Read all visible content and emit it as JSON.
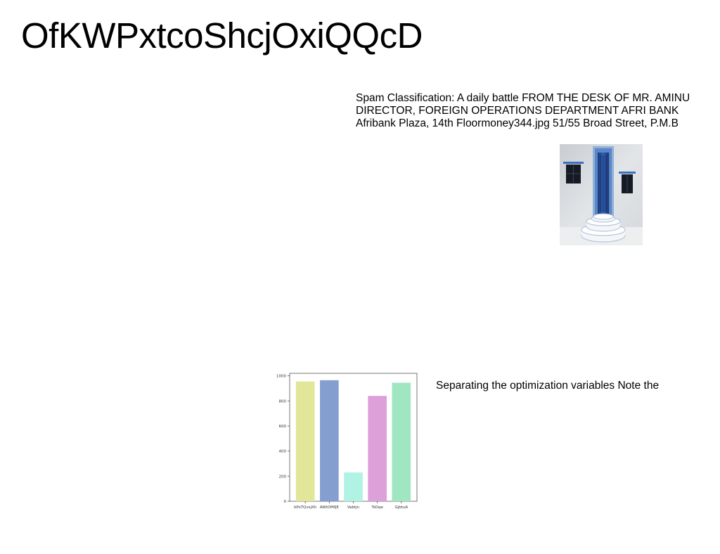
{
  "title": "OfKWPxtcoShcjOxiQQcD",
  "paragraph_top": "Spam Classification: A daily battle FROM THE DESK OF MR. AMINU DIRECTOR, FOREIGN OPERATIONS DEPARTMENT AFRI BANK Afribank Plaza, 14th Floormoney344.jpg 51/55 Broad Street, P.M.B",
  "paragraph_bottom": "Separating the optimization variables Note the",
  "photo": {
    "subject": "white wall with blue door, two windows and round steps"
  },
  "chart_data": {
    "type": "bar",
    "categories": [
      "bPsTQvsjXh",
      "AWtOfMjE",
      "Vabtjn",
      "TsDqe",
      "GjbtuA"
    ],
    "values": [
      955,
      965,
      230,
      840,
      945
    ],
    "colors": [
      "#e1e699",
      "#849fcf",
      "#b0f2e4",
      "#dea0d9",
      "#9fe6c1"
    ],
    "yticks": [
      0,
      200,
      400,
      600,
      800,
      1000
    ],
    "ylim": [
      0,
      1020
    ],
    "grid": false,
    "title": "",
    "xlabel": "",
    "ylabel": ""
  }
}
